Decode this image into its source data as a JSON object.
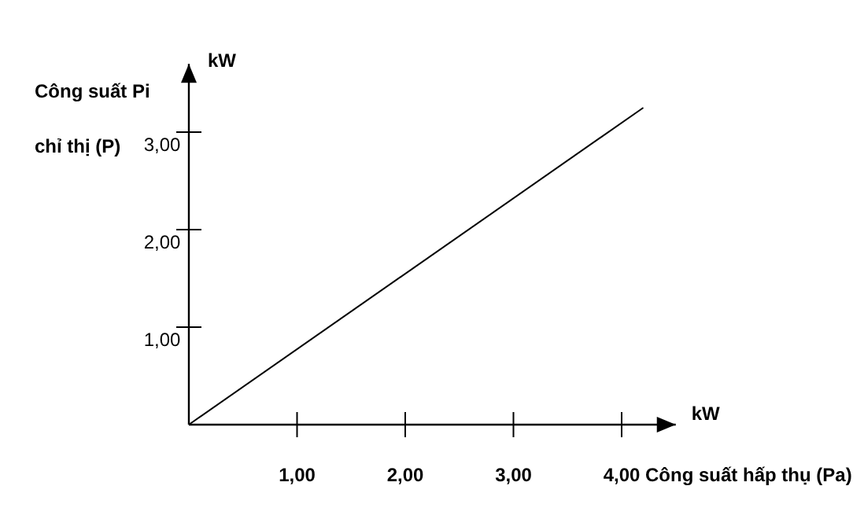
{
  "chart_data": {
    "type": "line",
    "xlabel": "Công suất hấp thụ (Pa)",
    "ylabel": "Công suất Pi\nchỉ thị (P)",
    "annotations": [
      "kW",
      "kW"
    ],
    "x": [
      0,
      4.2
    ],
    "series": [
      {
        "color": "#000000",
        "values": [
          0,
          3.25
        ]
      }
    ],
    "xlim": [
      0,
      4.5
    ],
    "ylim": [
      0,
      3.7
    ],
    "xticks": [
      {
        "value": 1,
        "label": "1,00"
      },
      {
        "value": 2,
        "label": "2,00"
      },
      {
        "value": 3,
        "label": "3,00"
      },
      {
        "value": 4,
        "label": "4,00"
      }
    ],
    "yticks": [
      {
        "value": 1,
        "label": "1,00"
      },
      {
        "value": 2,
        "label": "2,00"
      },
      {
        "value": 3,
        "label": "3,00"
      }
    ],
    "grid": false,
    "marker": "none",
    "line_style": "solid"
  }
}
